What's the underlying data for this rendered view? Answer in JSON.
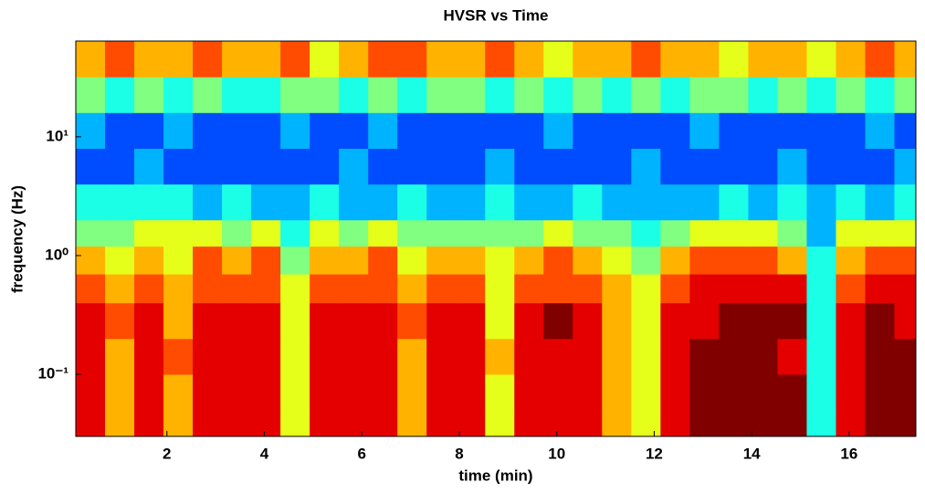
{
  "chart_data": {
    "type": "heatmap",
    "title": "HVSR vs Time",
    "xlabel": "time (min)",
    "ylabel": "frequency (Hz)",
    "colormap": "jet",
    "clim": [
      0,
      10
    ],
    "ylog": true,
    "xlim": [
      0.13,
      17.37
    ],
    "xticks": [
      2,
      4,
      6,
      8,
      10,
      12,
      14,
      16
    ],
    "ylim": [
      0.03,
      64
    ],
    "yticks": [
      {
        "value": 0.1,
        "label": "10⁻¹"
      },
      {
        "value": 1,
        "label": "10⁰"
      },
      {
        "value": 10,
        "label": "10¹"
      }
    ],
    "xbins": [
      0.13,
      0.73,
      1.33,
      1.93,
      2.53,
      3.13,
      3.73,
      4.33,
      4.93,
      5.53,
      6.13,
      6.73,
      7.33,
      7.93,
      8.53,
      9.13,
      9.73,
      10.33,
      10.93,
      11.53,
      12.13,
      12.73,
      13.33,
      13.93,
      14.53,
      15.13,
      15.73,
      16.33,
      16.93,
      17.37
    ],
    "ybins": [
      0.03,
      0.05,
      0.1,
      0.2,
      0.4,
      0.7,
      1.2,
      2,
      4,
      8,
      16,
      32,
      64
    ],
    "values": [
      [
        9,
        7,
        9,
        7,
        9,
        9,
        9,
        6,
        9,
        9,
        9,
        7,
        9,
        9,
        6,
        9,
        9,
        9,
        7,
        6,
        9,
        10,
        10,
        10,
        10,
        4,
        9,
        10,
        10
      ],
      [
        9,
        7,
        9,
        7,
        9,
        9,
        9,
        6,
        9,
        9,
        9,
        7,
        9,
        9,
        6,
        9,
        9,
        9,
        7,
        6,
        9,
        10,
        10,
        10,
        10,
        4,
        9,
        10,
        10
      ],
      [
        9,
        7,
        9,
        8,
        9,
        9,
        9,
        6,
        9,
        9,
        9,
        7,
        9,
        9,
        7,
        9,
        9,
        9,
        7,
        6,
        9,
        10,
        10,
        10,
        9,
        4,
        9,
        10,
        10
      ],
      [
        9,
        8,
        9,
        7,
        9,
        9,
        9,
        6,
        9,
        9,
        9,
        8,
        9,
        9,
        6,
        9,
        10,
        9,
        7,
        6,
        9,
        9,
        10,
        10,
        10,
        4,
        9,
        10,
        9
      ],
      [
        8,
        7,
        8,
        7,
        8,
        8,
        8,
        6,
        8,
        8,
        8,
        7,
        8,
        8,
        6,
        8,
        8,
        8,
        7,
        6,
        8,
        9,
        9,
        9,
        9,
        4,
        8,
        9,
        9
      ],
      [
        7,
        6,
        7,
        6,
        8,
        7,
        8,
        5,
        7,
        7,
        8,
        6,
        7,
        7,
        6,
        7,
        8,
        7,
        6,
        5,
        7,
        8,
        8,
        8,
        7,
        4,
        7,
        8,
        8
      ],
      [
        5,
        5,
        6,
        6,
        6,
        5,
        6,
        4,
        6,
        5,
        6,
        5,
        5,
        5,
        5,
        5,
        6,
        5,
        5,
        4,
        5,
        6,
        6,
        6,
        5,
        3,
        6,
        6,
        6
      ],
      [
        4,
        4,
        4,
        4,
        3,
        4,
        3,
        3,
        4,
        3,
        3,
        4,
        3,
        3,
        4,
        3,
        3,
        4,
        3,
        3,
        3,
        3,
        4,
        3,
        4,
        3,
        4,
        3,
        4
      ],
      [
        2,
        2,
        3,
        2,
        2,
        2,
        2,
        2,
        2,
        3,
        2,
        2,
        2,
        2,
        3,
        2,
        2,
        2,
        2,
        3,
        2,
        2,
        2,
        2,
        3,
        2,
        2,
        2,
        3
      ],
      [
        3,
        2,
        2,
        3,
        2,
        2,
        2,
        3,
        2,
        2,
        3,
        2,
        2,
        2,
        2,
        2,
        3,
        2,
        2,
        2,
        2,
        3,
        2,
        2,
        2,
        2,
        2,
        3,
        2
      ],
      [
        5,
        4,
        5,
        4,
        5,
        4,
        4,
        5,
        5,
        4,
        5,
        4,
        5,
        5,
        4,
        5,
        4,
        5,
        4,
        5,
        4,
        5,
        5,
        4,
        5,
        4,
        5,
        4,
        5
      ],
      [
        7,
        8,
        7,
        7,
        8,
        7,
        7,
        8,
        6,
        7,
        8,
        8,
        7,
        7,
        8,
        7,
        6,
        7,
        7,
        8,
        7,
        7,
        6,
        7,
        7,
        6,
        7,
        8,
        7
      ]
    ]
  }
}
